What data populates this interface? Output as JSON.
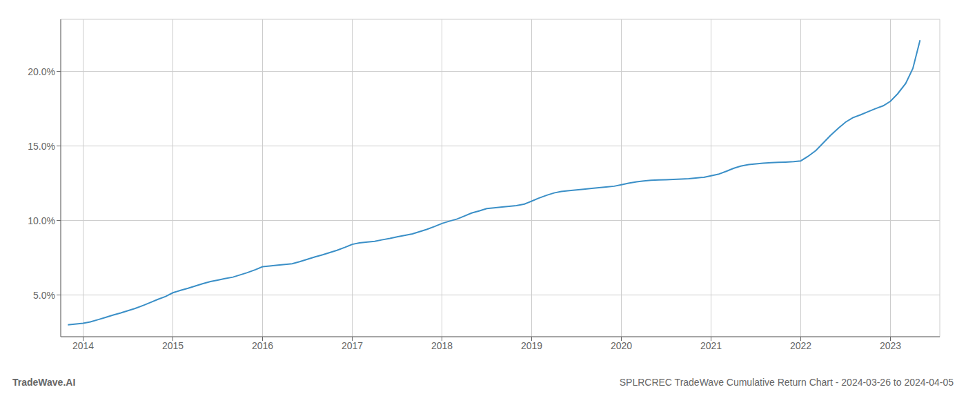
{
  "chart_data": {
    "type": "line",
    "title": "SPLRCREC TradeWave Cumulative Return Chart - 2024-03-26 to 2024-04-05",
    "annotations": [
      "TradeWave.AI"
    ],
    "color": "#3a8fc7",
    "grid": true,
    "xlim": [
      2013.75,
      2023.55
    ],
    "xticks": [
      2014,
      2015,
      2016,
      2017,
      2018,
      2019,
      2020,
      2021,
      2022,
      2023
    ],
    "ylim": [
      2.2,
      23.5
    ],
    "yticks": [
      {
        "value": 5.0,
        "label": "5.0%"
      },
      {
        "value": 10.0,
        "label": "10.0%"
      },
      {
        "value": 15.0,
        "label": "15.0%"
      },
      {
        "value": 20.0,
        "label": "20.0%"
      }
    ],
    "x": [
      2013.83,
      2014.0,
      2014.08,
      2014.17,
      2014.25,
      2014.33,
      2014.42,
      2014.5,
      2014.58,
      2014.67,
      2014.75,
      2014.83,
      2014.92,
      2015.0,
      2015.08,
      2015.17,
      2015.25,
      2015.33,
      2015.42,
      2015.5,
      2015.58,
      2015.67,
      2015.75,
      2015.83,
      2015.92,
      2016.0,
      2016.08,
      2016.17,
      2016.25,
      2016.33,
      2016.42,
      2016.5,
      2016.58,
      2016.67,
      2016.75,
      2016.83,
      2016.92,
      2017.0,
      2017.08,
      2017.17,
      2017.25,
      2017.33,
      2017.42,
      2017.5,
      2017.58,
      2017.67,
      2017.75,
      2017.83,
      2017.92,
      2018.0,
      2018.08,
      2018.17,
      2018.25,
      2018.33,
      2018.42,
      2018.5,
      2018.58,
      2018.67,
      2018.75,
      2018.83,
      2018.92,
      2019.0,
      2019.08,
      2019.17,
      2019.25,
      2019.33,
      2019.42,
      2019.5,
      2019.58,
      2019.67,
      2019.75,
      2019.83,
      2019.92,
      2020.0,
      2020.08,
      2020.17,
      2020.25,
      2020.33,
      2020.42,
      2020.5,
      2020.58,
      2020.67,
      2020.75,
      2020.83,
      2020.92,
      2021.0,
      2021.08,
      2021.17,
      2021.25,
      2021.33,
      2021.42,
      2021.5,
      2021.58,
      2021.67,
      2021.75,
      2021.83,
      2021.92,
      2022.0,
      2022.08,
      2022.17,
      2022.25,
      2022.33,
      2022.42,
      2022.5,
      2022.58,
      2022.67,
      2022.75,
      2022.83,
      2022.92,
      2023.0,
      2023.08,
      2023.17,
      2023.25,
      2023.33
    ],
    "values": [
      3.0,
      3.1,
      3.2,
      3.35,
      3.5,
      3.65,
      3.8,
      3.95,
      4.1,
      4.3,
      4.5,
      4.7,
      4.9,
      5.15,
      5.3,
      5.45,
      5.6,
      5.75,
      5.9,
      6.0,
      6.1,
      6.2,
      6.35,
      6.5,
      6.7,
      6.9,
      6.95,
      7.0,
      7.05,
      7.1,
      7.25,
      7.4,
      7.55,
      7.7,
      7.85,
      8.0,
      8.2,
      8.4,
      8.5,
      8.55,
      8.6,
      8.7,
      8.8,
      8.9,
      9.0,
      9.1,
      9.25,
      9.4,
      9.6,
      9.8,
      9.95,
      10.1,
      10.3,
      10.5,
      10.65,
      10.8,
      10.85,
      10.9,
      10.95,
      11.0,
      11.1,
      11.3,
      11.5,
      11.7,
      11.85,
      11.95,
      12.0,
      12.05,
      12.1,
      12.15,
      12.2,
      12.25,
      12.3,
      12.4,
      12.5,
      12.6,
      12.65,
      12.7,
      12.72,
      12.74,
      12.76,
      12.78,
      12.8,
      12.85,
      12.9,
      13.0,
      13.1,
      13.3,
      13.5,
      13.65,
      13.75,
      13.8,
      13.85,
      13.88,
      13.9,
      13.92,
      13.95,
      14.0,
      14.3,
      14.7,
      15.2,
      15.7,
      16.2,
      16.6,
      16.9,
      17.1,
      17.3,
      17.5,
      17.7,
      18.0,
      18.5,
      19.2,
      20.2,
      22.1
    ]
  }
}
